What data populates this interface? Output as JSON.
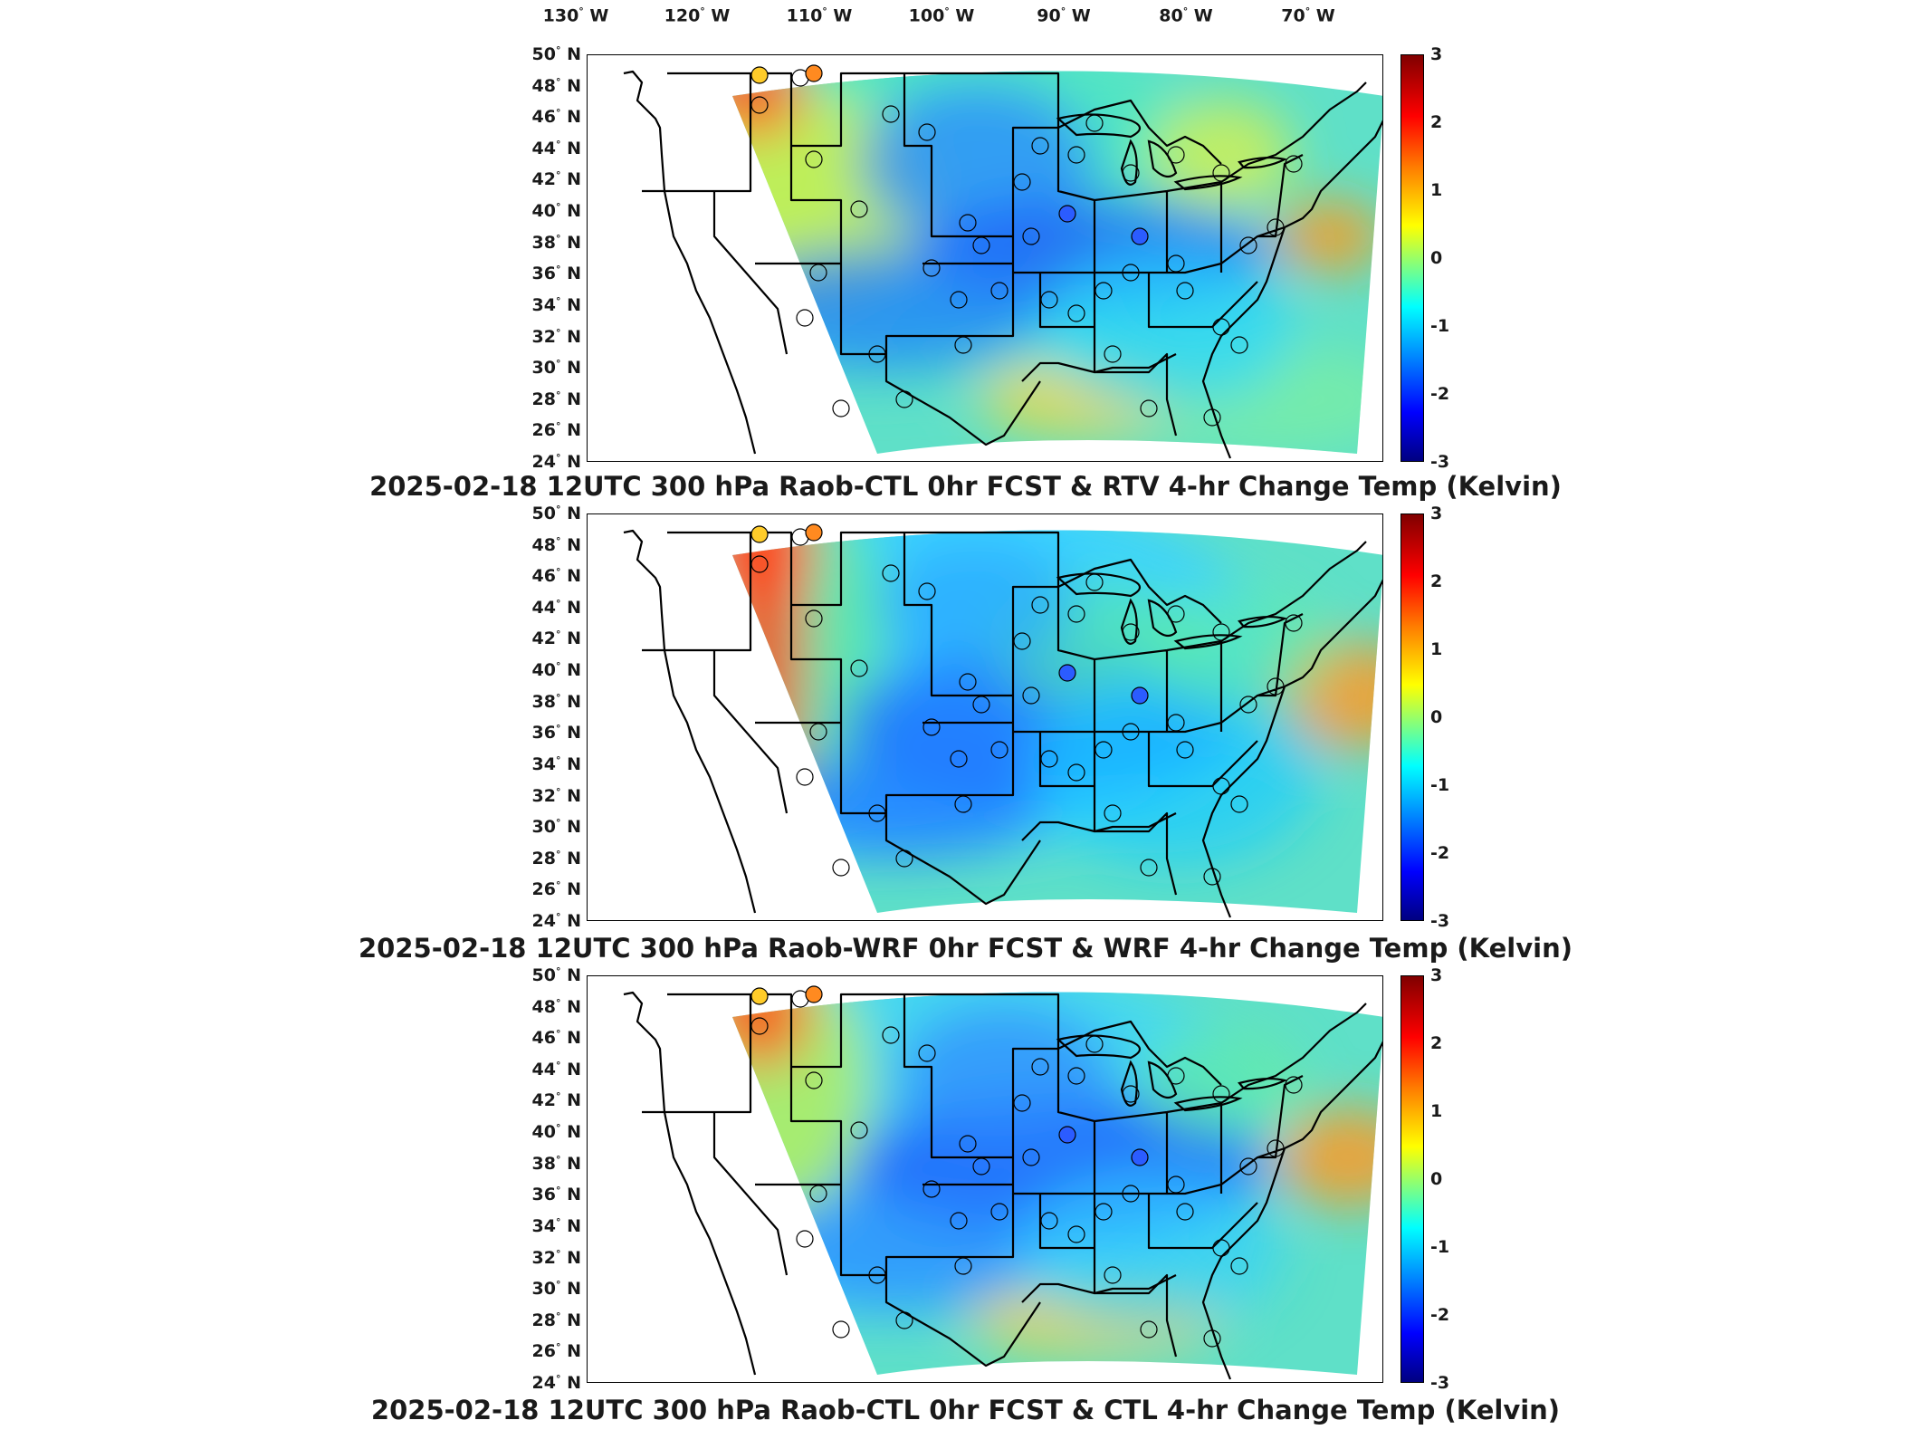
{
  "lon_labels": [
    {
      "deg": "130",
      "hem": "W"
    },
    {
      "deg": "120",
      "hem": "W"
    },
    {
      "deg": "110",
      "hem": "W"
    },
    {
      "deg": "100",
      "hem": "W"
    },
    {
      "deg": "90",
      "hem": "W"
    },
    {
      "deg": "80",
      "hem": "W"
    },
    {
      "deg": "70",
      "hem": "W"
    }
  ],
  "lat_labels": [
    {
      "deg": "50",
      "hem": "N"
    },
    {
      "deg": "48",
      "hem": "N"
    },
    {
      "deg": "46",
      "hem": "N"
    },
    {
      "deg": "44",
      "hem": "N"
    },
    {
      "deg": "42",
      "hem": "N"
    },
    {
      "deg": "40",
      "hem": "N"
    },
    {
      "deg": "38",
      "hem": "N"
    },
    {
      "deg": "36",
      "hem": "N"
    },
    {
      "deg": "34",
      "hem": "N"
    },
    {
      "deg": "32",
      "hem": "N"
    },
    {
      "deg": "30",
      "hem": "N"
    },
    {
      "deg": "28",
      "hem": "N"
    },
    {
      "deg": "26",
      "hem": "N"
    },
    {
      "deg": "24",
      "hem": "N"
    }
  ],
  "colorbar": {
    "ticks": [
      "3",
      "2",
      "1",
      "0",
      "-1",
      "-2",
      "-3"
    ],
    "min": -3,
    "max": 3,
    "colormap": "jet",
    "colors": [
      "#800000",
      "#ff0000",
      "#ff8000",
      "#ffff00",
      "#80ff80",
      "#00ffff",
      "#0080ff",
      "#0000ff",
      "#000080"
    ]
  },
  "panels": [
    {
      "title": "2025-02-18 12UTC 300 hPa Raob-CTL 0hr FCST & RTV 4-hr Change Temp (Kelvin)"
    },
    {
      "title": "2025-02-18 12UTC 300 hPa Raob-WRF 0hr FCST & WRF 4-hr Change Temp (Kelvin)"
    },
    {
      "title": "2025-02-18 12UTC 300 hPa Raob-CTL 0hr FCST & CTL 4-hr Change Temp (Kelvin)"
    }
  ]
}
